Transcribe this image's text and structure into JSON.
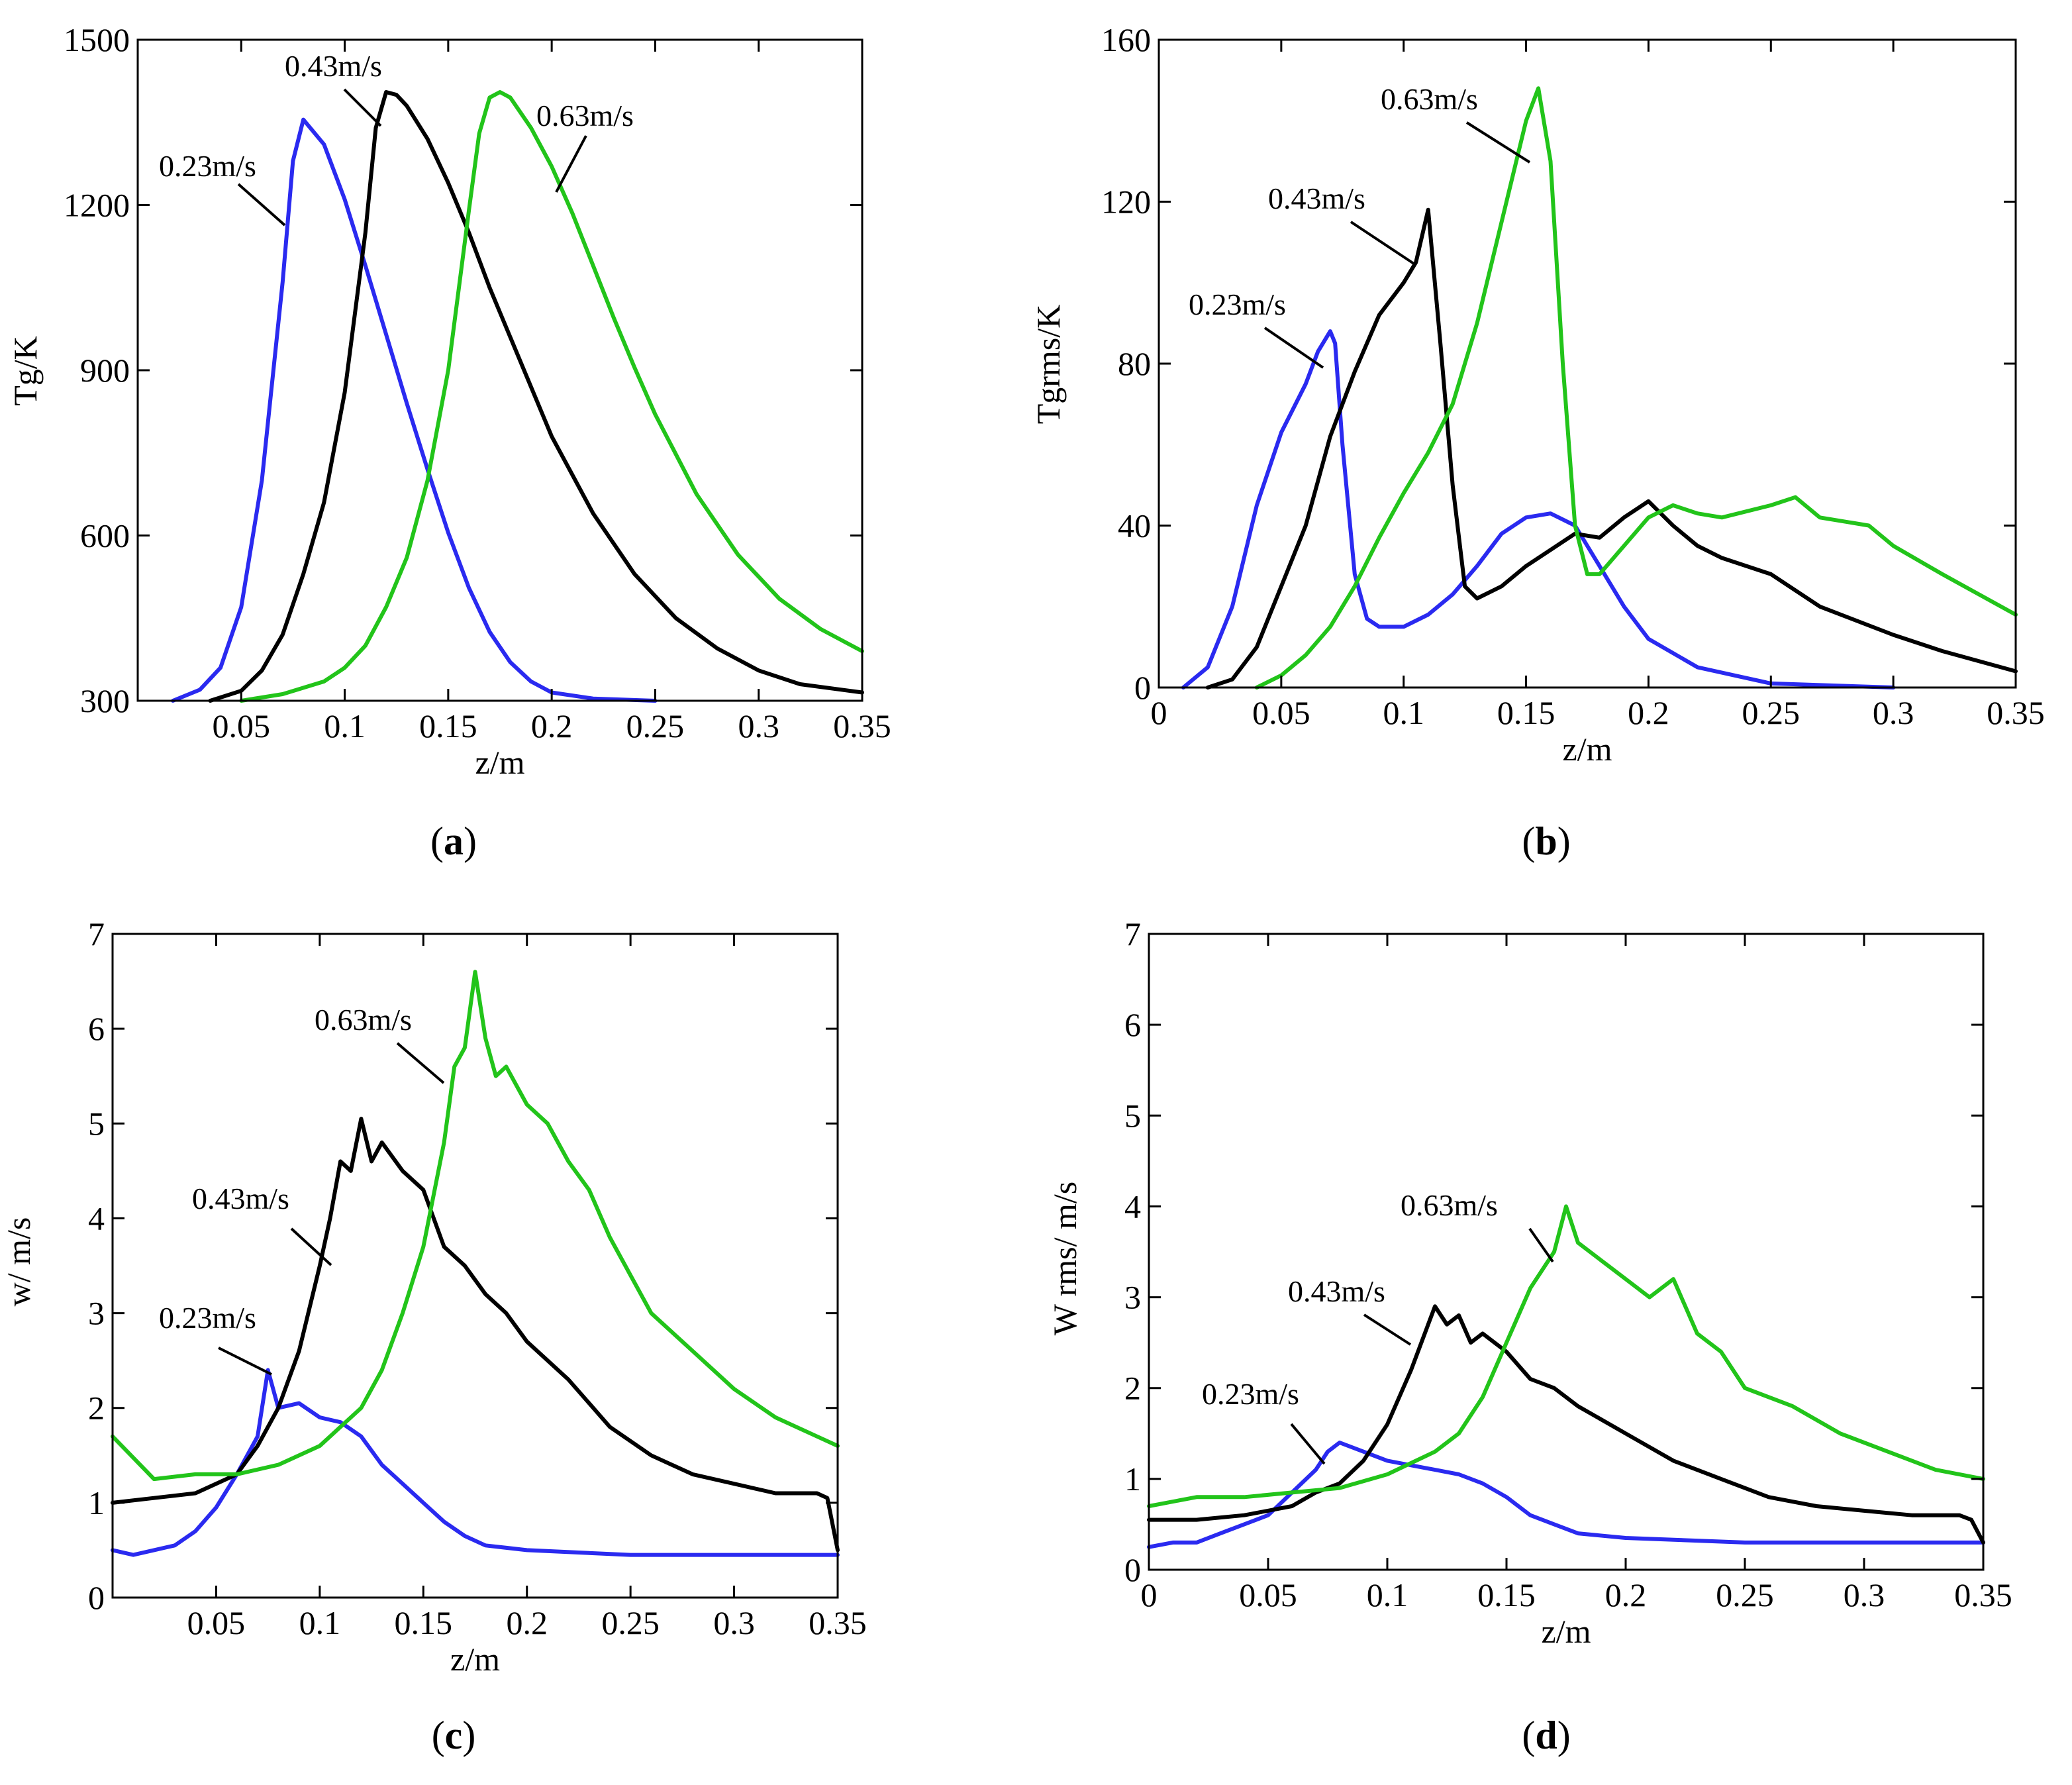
{
  "colors": {
    "blue": "#2a2af0",
    "black": "#000000",
    "green": "#22c41a"
  },
  "series_names": [
    "0.23m/s",
    "0.43m/s",
    "0.63m/s"
  ],
  "chart_data": [
    {
      "id": "a",
      "type": "line",
      "caption": "a",
      "xlabel": "z/m",
      "ylabel": "Tg/K",
      "xlim": [
        0,
        0.35
      ],
      "ylim": [
        300,
        1500
      ],
      "xticks": [
        0.05,
        0.1,
        0.15,
        0.2,
        0.25,
        0.3,
        0.35
      ],
      "xtick_labels": [
        "0.05",
        "0.1",
        "0.15",
        "0.2",
        "0.25",
        "0.3",
        "0.35"
      ],
      "yticks": [
        300,
        600,
        900,
        1200,
        1500
      ],
      "ytick_labels": [
        "300",
        "600",
        "900",
        "1200",
        "1500"
      ],
      "series": [
        {
          "name": "0.23m/s",
          "color": "blue",
          "x": [
            0.017,
            0.03,
            0.04,
            0.05,
            0.06,
            0.07,
            0.075,
            0.08,
            0.09,
            0.1,
            0.11,
            0.12,
            0.13,
            0.14,
            0.15,
            0.16,
            0.17,
            0.18,
            0.19,
            0.2,
            0.22,
            0.25
          ],
          "y": [
            300,
            320,
            360,
            470,
            700,
            1060,
            1280,
            1355,
            1310,
            1210,
            1090,
            965,
            840,
            720,
            605,
            505,
            425,
            370,
            335,
            315,
            304,
            300
          ]
        },
        {
          "name": "0.43m/s",
          "color": "black",
          "x": [
            0.035,
            0.05,
            0.06,
            0.07,
            0.08,
            0.09,
            0.1,
            0.11,
            0.115,
            0.12,
            0.125,
            0.13,
            0.14,
            0.15,
            0.16,
            0.17,
            0.18,
            0.2,
            0.22,
            0.24,
            0.26,
            0.28,
            0.3,
            0.32,
            0.35
          ],
          "y": [
            300,
            318,
            355,
            420,
            530,
            660,
            860,
            1150,
            1340,
            1405,
            1400,
            1380,
            1320,
            1240,
            1150,
            1050,
            960,
            780,
            640,
            530,
            450,
            395,
            355,
            330,
            315
          ]
        },
        {
          "name": "0.63m/s",
          "color": "green",
          "x": [
            0.05,
            0.07,
            0.09,
            0.1,
            0.11,
            0.12,
            0.13,
            0.14,
            0.15,
            0.16,
            0.165,
            0.17,
            0.175,
            0.18,
            0.19,
            0.2,
            0.21,
            0.22,
            0.23,
            0.24,
            0.25,
            0.27,
            0.29,
            0.31,
            0.33,
            0.35
          ],
          "y": [
            300,
            312,
            335,
            360,
            400,
            470,
            560,
            700,
            900,
            1190,
            1330,
            1395,
            1405,
            1395,
            1340,
            1270,
            1185,
            1090,
            995,
            905,
            820,
            675,
            565,
            485,
            430,
            390
          ]
        }
      ],
      "annotations": [
        {
          "text": "0.23m/s",
          "series": "0.23m/s"
        },
        {
          "text": "0.43m/s",
          "series": "0.43m/s"
        },
        {
          "text": "0.63m/s",
          "series": "0.63m/s"
        }
      ]
    },
    {
      "id": "b",
      "type": "line",
      "caption": "b",
      "xlabel": "z/m",
      "ylabel": "Tgrms/K",
      "xlim": [
        0,
        0.35
      ],
      "ylim": [
        0,
        160
      ],
      "xticks": [
        0,
        0.05,
        0.1,
        0.15,
        0.2,
        0.25,
        0.3,
        0.35
      ],
      "xtick_labels": [
        "0",
        "0.05",
        "0.1",
        "0.15",
        "0.2",
        "0.25",
        "0.3",
        "0.35"
      ],
      "yticks": [
        0,
        40,
        80,
        120,
        160
      ],
      "ytick_labels": [
        "0",
        "40",
        "80",
        "120",
        "160"
      ],
      "series": [
        {
          "name": "0.23m/s",
          "color": "blue",
          "x": [
            0.01,
            0.02,
            0.03,
            0.04,
            0.05,
            0.06,
            0.065,
            0.07,
            0.072,
            0.075,
            0.08,
            0.085,
            0.09,
            0.1,
            0.11,
            0.12,
            0.13,
            0.14,
            0.15,
            0.16,
            0.17,
            0.18,
            0.19,
            0.2,
            0.22,
            0.25,
            0.3
          ],
          "y": [
            0,
            5,
            20,
            45,
            63,
            75,
            83,
            88,
            85,
            60,
            28,
            17,
            15,
            15,
            18,
            23,
            30,
            38,
            42,
            43,
            40,
            30,
            20,
            12,
            5,
            1,
            0
          ]
        },
        {
          "name": "0.43m/s",
          "color": "black",
          "x": [
            0.02,
            0.03,
            0.04,
            0.05,
            0.06,
            0.07,
            0.08,
            0.09,
            0.1,
            0.105,
            0.11,
            0.115,
            0.12,
            0.125,
            0.13,
            0.14,
            0.15,
            0.16,
            0.17,
            0.18,
            0.19,
            0.2,
            0.21,
            0.22,
            0.23,
            0.24,
            0.25,
            0.27,
            0.3,
            0.32,
            0.35
          ],
          "y": [
            0,
            2,
            10,
            25,
            40,
            62,
            78,
            92,
            100,
            105,
            118,
            85,
            50,
            25,
            22,
            25,
            30,
            34,
            38,
            37,
            42,
            46,
            40,
            35,
            32,
            30,
            28,
            20,
            13,
            9,
            4
          ]
        },
        {
          "name": "0.63m/s",
          "color": "green",
          "x": [
            0.04,
            0.05,
            0.06,
            0.07,
            0.08,
            0.09,
            0.1,
            0.11,
            0.12,
            0.13,
            0.14,
            0.15,
            0.155,
            0.16,
            0.165,
            0.17,
            0.175,
            0.18,
            0.19,
            0.2,
            0.21,
            0.22,
            0.23,
            0.25,
            0.26,
            0.27,
            0.29,
            0.3,
            0.32,
            0.35
          ],
          "y": [
            0,
            3,
            8,
            15,
            25,
            37,
            48,
            58,
            70,
            90,
            115,
            140,
            148,
            130,
            80,
            40,
            28,
            28,
            35,
            42,
            45,
            43,
            42,
            45,
            47,
            42,
            40,
            35,
            28,
            18
          ]
        }
      ],
      "annotations": [
        {
          "text": "0.23m/s",
          "series": "0.23m/s"
        },
        {
          "text": "0.43m/s",
          "series": "0.43m/s"
        },
        {
          "text": "0.63m/s",
          "series": "0.63m/s"
        }
      ]
    },
    {
      "id": "c",
      "type": "line",
      "caption": "c",
      "xlabel": "z/m",
      "ylabel": "w/ m/s",
      "xlim": [
        0,
        0.35
      ],
      "ylim": [
        0,
        7
      ],
      "xticks": [
        0.05,
        0.1,
        0.15,
        0.2,
        0.25,
        0.3,
        0.35
      ],
      "xtick_labels": [
        "0.05",
        "0.1",
        "0.15",
        "0.2",
        "0.25",
        "0.3",
        "0.35"
      ],
      "yticks": [
        0,
        1,
        2,
        3,
        4,
        5,
        6,
        7
      ],
      "ytick_labels": [
        "0",
        "1",
        "2",
        "3",
        "4",
        "5",
        "6",
        "7"
      ],
      "series": [
        {
          "name": "0.23m/s",
          "color": "blue",
          "x": [
            0,
            0.01,
            0.02,
            0.03,
            0.04,
            0.05,
            0.06,
            0.07,
            0.075,
            0.08,
            0.09,
            0.1,
            0.11,
            0.12,
            0.13,
            0.14,
            0.15,
            0.16,
            0.17,
            0.18,
            0.2,
            0.25,
            0.3,
            0.35
          ],
          "y": [
            0.5,
            0.45,
            0.5,
            0.55,
            0.7,
            0.95,
            1.3,
            1.7,
            2.4,
            2.0,
            2.05,
            1.9,
            1.85,
            1.7,
            1.4,
            1.2,
            1.0,
            0.8,
            0.65,
            0.55,
            0.5,
            0.45,
            0.45,
            0.45
          ]
        },
        {
          "name": "0.43m/s",
          "color": "black",
          "x": [
            0,
            0.02,
            0.04,
            0.06,
            0.07,
            0.08,
            0.09,
            0.1,
            0.105,
            0.11,
            0.115,
            0.12,
            0.125,
            0.13,
            0.14,
            0.15,
            0.16,
            0.17,
            0.18,
            0.19,
            0.2,
            0.22,
            0.24,
            0.26,
            0.28,
            0.3,
            0.32,
            0.34,
            0.345,
            0.35
          ],
          "y": [
            1.0,
            1.05,
            1.1,
            1.3,
            1.6,
            2.0,
            2.6,
            3.5,
            4.0,
            4.6,
            4.5,
            5.05,
            4.6,
            4.8,
            4.5,
            4.3,
            3.7,
            3.5,
            3.2,
            3.0,
            2.7,
            2.3,
            1.8,
            1.5,
            1.3,
            1.2,
            1.1,
            1.1,
            1.05,
            0.5
          ]
        },
        {
          "name": "0.63m/s",
          "color": "green",
          "x": [
            0,
            0.02,
            0.04,
            0.06,
            0.08,
            0.1,
            0.12,
            0.13,
            0.14,
            0.15,
            0.16,
            0.165,
            0.17,
            0.175,
            0.18,
            0.185,
            0.19,
            0.2,
            0.21,
            0.22,
            0.23,
            0.24,
            0.25,
            0.26,
            0.28,
            0.3,
            0.32,
            0.34,
            0.35
          ],
          "y": [
            1.7,
            1.25,
            1.3,
            1.3,
            1.4,
            1.6,
            2.0,
            2.4,
            3.0,
            3.7,
            4.8,
            5.6,
            5.8,
            6.6,
            5.9,
            5.5,
            5.6,
            5.2,
            5.0,
            4.6,
            4.3,
            3.8,
            3.4,
            3.0,
            2.6,
            2.2,
            1.9,
            1.7,
            1.6
          ]
        }
      ],
      "annotations": [
        {
          "text": "0.23m/s",
          "series": "0.23m/s"
        },
        {
          "text": "0.43m/s",
          "series": "0.43m/s"
        },
        {
          "text": "0.63m/s",
          "series": "0.63m/s"
        }
      ]
    },
    {
      "id": "d",
      "type": "line",
      "caption": "d",
      "xlabel": "z/m",
      "ylabel": "W rms/ m/s",
      "xlim": [
        0,
        0.35
      ],
      "ylim": [
        0,
        7
      ],
      "xticks": [
        0,
        0.05,
        0.1,
        0.15,
        0.2,
        0.25,
        0.3,
        0.35
      ],
      "xtick_labels": [
        "0",
        "0.05",
        "0.1",
        "0.15",
        "0.2",
        "0.25",
        "0.3",
        "0.35"
      ],
      "yticks": [
        0,
        1,
        2,
        3,
        4,
        5,
        6,
        7
      ],
      "ytick_labels": [
        "0",
        "1",
        "2",
        "3",
        "4",
        "5",
        "6",
        "7"
      ],
      "series": [
        {
          "name": "0.23m/s",
          "color": "blue",
          "x": [
            0,
            0.01,
            0.02,
            0.03,
            0.04,
            0.05,
            0.06,
            0.07,
            0.075,
            0.08,
            0.09,
            0.1,
            0.11,
            0.12,
            0.13,
            0.14,
            0.15,
            0.16,
            0.17,
            0.18,
            0.2,
            0.25,
            0.3,
            0.35
          ],
          "y": [
            0.25,
            0.3,
            0.3,
            0.4,
            0.5,
            0.6,
            0.85,
            1.1,
            1.3,
            1.4,
            1.3,
            1.2,
            1.15,
            1.1,
            1.05,
            0.95,
            0.8,
            0.6,
            0.5,
            0.4,
            0.35,
            0.3,
            0.3,
            0.3
          ]
        },
        {
          "name": "0.43m/s",
          "color": "black",
          "x": [
            0,
            0.02,
            0.04,
            0.06,
            0.07,
            0.08,
            0.09,
            0.1,
            0.11,
            0.12,
            0.125,
            0.13,
            0.135,
            0.14,
            0.15,
            0.16,
            0.17,
            0.18,
            0.2,
            0.22,
            0.24,
            0.26,
            0.28,
            0.3,
            0.32,
            0.34,
            0.345,
            0.35
          ],
          "y": [
            0.55,
            0.55,
            0.6,
            0.7,
            0.85,
            0.95,
            1.2,
            1.6,
            2.2,
            2.9,
            2.7,
            2.8,
            2.5,
            2.6,
            2.4,
            2.1,
            2.0,
            1.8,
            1.5,
            1.2,
            1.0,
            0.8,
            0.7,
            0.65,
            0.6,
            0.6,
            0.55,
            0.3
          ]
        },
        {
          "name": "0.63m/s",
          "color": "green",
          "x": [
            0,
            0.02,
            0.04,
            0.06,
            0.08,
            0.1,
            0.12,
            0.13,
            0.14,
            0.15,
            0.16,
            0.17,
            0.175,
            0.18,
            0.19,
            0.2,
            0.21,
            0.22,
            0.23,
            0.24,
            0.25,
            0.27,
            0.29,
            0.31,
            0.33,
            0.35
          ],
          "y": [
            0.7,
            0.8,
            0.8,
            0.85,
            0.9,
            1.05,
            1.3,
            1.5,
            1.9,
            2.5,
            3.1,
            3.5,
            4.0,
            3.6,
            3.4,
            3.2,
            3.0,
            3.2,
            2.6,
            2.4,
            2.0,
            1.8,
            1.5,
            1.3,
            1.1,
            1.0
          ]
        }
      ],
      "annotations": [
        {
          "text": "0.23m/s",
          "series": "0.23m/s"
        },
        {
          "text": "0.43m/s",
          "series": "0.43m/s"
        },
        {
          "text": "0.63m/s",
          "series": "0.63m/s"
        }
      ]
    }
  ]
}
